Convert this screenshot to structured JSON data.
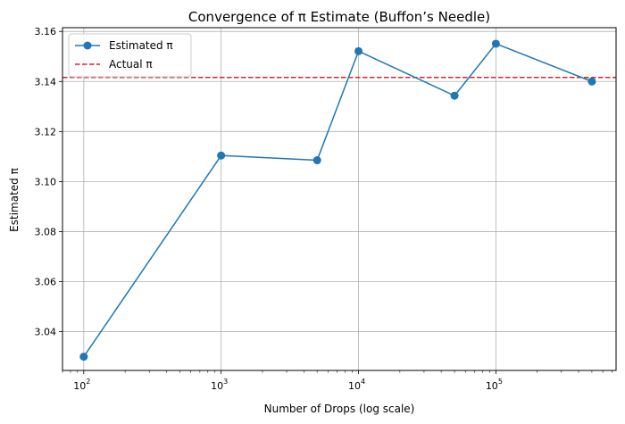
{
  "chart_data": {
    "type": "line",
    "title": "Convergence of π Estimate (Buffon’s Needle)",
    "xlabel": "Number of Drops (log scale)",
    "ylabel": "Estimated π",
    "xscale": "log",
    "xlim": [
      70,
      750000
    ],
    "ylim": [
      3.0245,
      3.1615
    ],
    "grid": true,
    "legend_position": "top-left",
    "x_ticks": [
      {
        "value": 100,
        "base": "10",
        "exp": "2"
      },
      {
        "value": 1000,
        "base": "10",
        "exp": "3"
      },
      {
        "value": 10000,
        "base": "10",
        "exp": "4"
      },
      {
        "value": 100000,
        "base": "10",
        "exp": "5"
      }
    ],
    "y_ticks": [
      "3.04",
      "3.06",
      "3.08",
      "3.10",
      "3.12",
      "3.14",
      "3.16"
    ],
    "series": [
      {
        "name": "Estimated π",
        "color": "#1f77b4",
        "marker": "circle",
        "x": [
          100,
          1000,
          5000,
          10000,
          50000,
          100000,
          500000
        ],
        "y": [
          3.03,
          3.1104,
          3.1085,
          3.1521,
          3.1343,
          3.1551,
          3.14
        ]
      }
    ],
    "reference_line": {
      "name": "Actual π",
      "value": 3.14159,
      "color": "#d62728",
      "style": "dashed"
    }
  }
}
